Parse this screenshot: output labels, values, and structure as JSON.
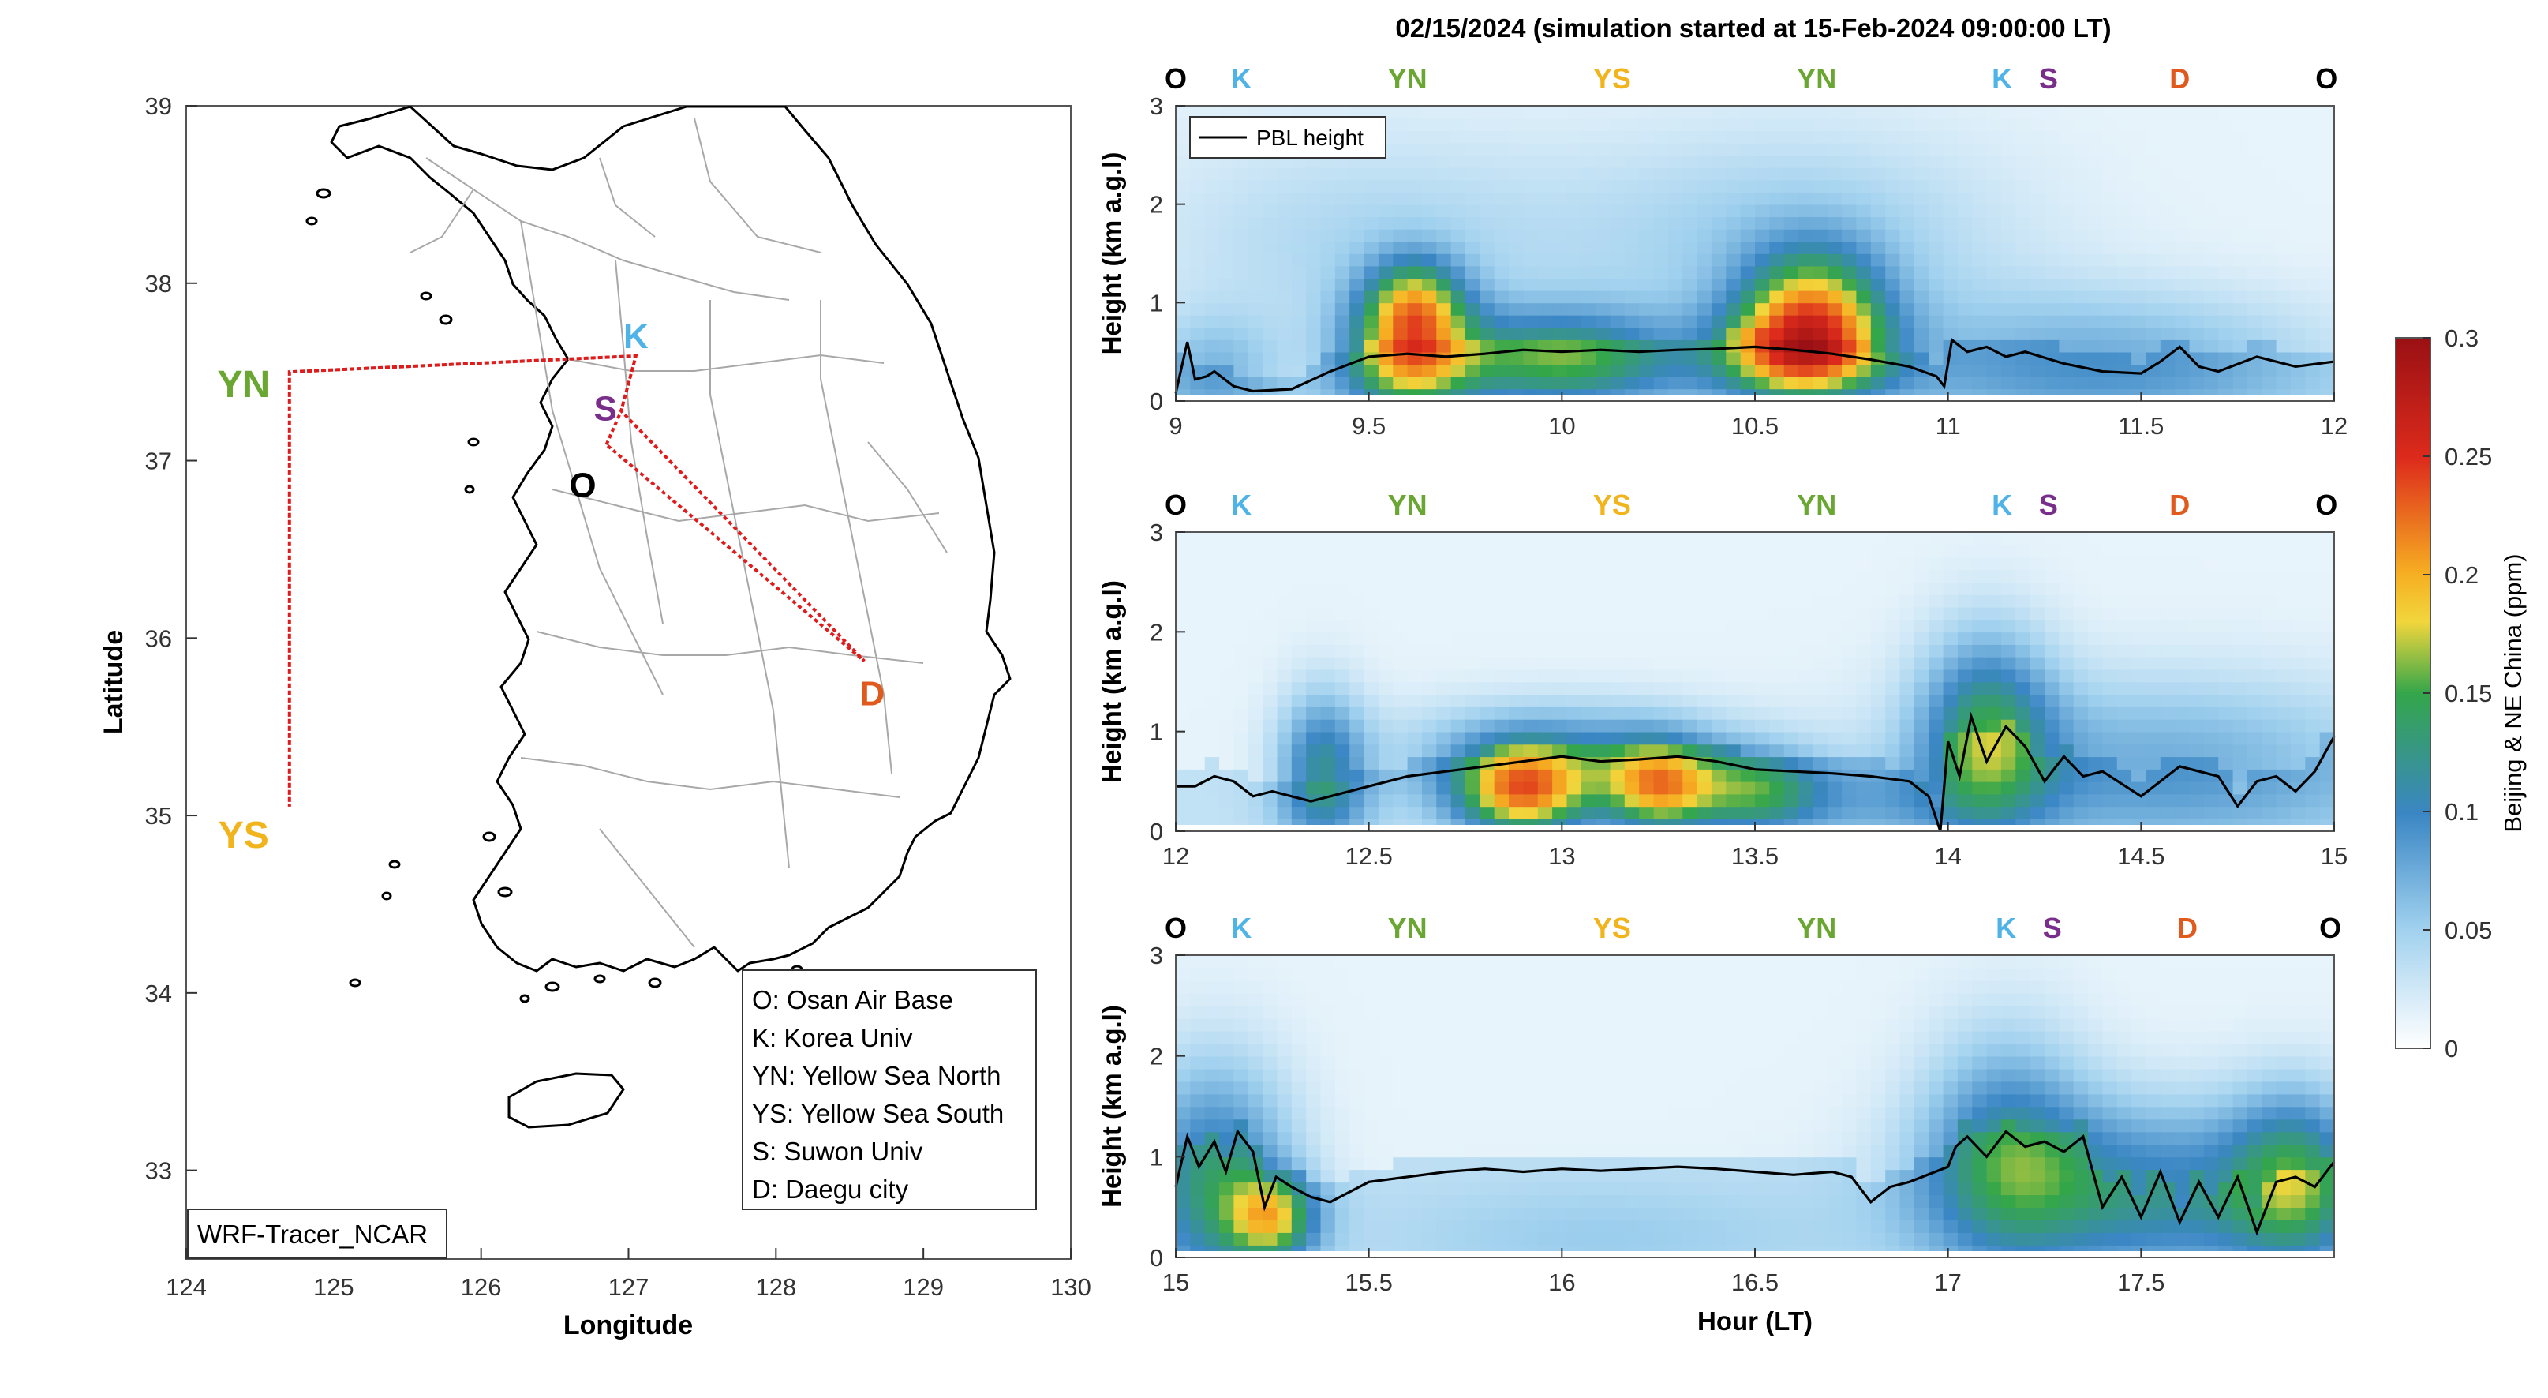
{
  "title": "02/15/2024 (simulation started at 15-Feb-2024 09:00:00 LT)",
  "colors": {
    "O": "#000000",
    "K": "#4fb3e8",
    "YN": "#6aa632",
    "YS": "#f2b41c",
    "S": "#7a2e8c",
    "D": "#e05a1e",
    "track": "#e01b1b",
    "pbl": "#000000"
  },
  "map": {
    "xlabel": "Longitude",
    "ylabel": "Latitude",
    "xticks": [
      "124",
      "125",
      "126",
      "127",
      "128",
      "129",
      "130"
    ],
    "yticks": [
      "33",
      "34",
      "35",
      "36",
      "37",
      "38",
      "39"
    ],
    "xlim": [
      124,
      130
    ],
    "ylim": [
      32.5,
      39
    ],
    "sites": [
      {
        "code": "K",
        "lon": 127.05,
        "lat": 37.59
      },
      {
        "code": "S",
        "lon": 126.95,
        "lat": 37.28
      },
      {
        "code": "O",
        "lon": 126.85,
        "lat": 37.09
      },
      {
        "code": "D",
        "lon": 128.6,
        "lat": 35.87
      },
      {
        "code": "YN",
        "lon": 124.5,
        "lat": 37.5
      },
      {
        "code": "YS",
        "lon": 124.5,
        "lat": 35.05
      }
    ],
    "legend": [
      "O: Osan Air Base",
      "K: Korea Univ",
      "YN: Yellow Sea North",
      "YS: Yellow Sea South",
      "S: Suwon Univ",
      "D: Daegu city"
    ],
    "model_label": "WRF-Tracer_NCAR"
  },
  "colorbar": {
    "label": "Beijing & NE China (ppm)",
    "ticks": [
      "0",
      "0.05",
      "0.1",
      "0.15",
      "0.2",
      "0.25",
      "0.3"
    ],
    "range": [
      0,
      0.3
    ]
  },
  "chart_data": [
    {
      "type": "heatmap",
      "ylabel": "Height (km a.g.l)",
      "xlabel": "",
      "xlim": [
        9,
        12
      ],
      "ylim": [
        0,
        3
      ],
      "xticks": [
        "9",
        "9.5",
        "10",
        "10.5",
        "11",
        "11.5",
        "12"
      ],
      "yticks": [
        "0",
        "1",
        "2",
        "3"
      ],
      "legend": "PBL height",
      "top_labels": [
        {
          "code": "O",
          "x": 9.0
        },
        {
          "code": "K",
          "x": 9.17
        },
        {
          "code": "YN",
          "x": 9.6
        },
        {
          "code": "YS",
          "x": 10.13
        },
        {
          "code": "YN",
          "x": 10.66
        },
        {
          "code": "K",
          "x": 11.14
        },
        {
          "code": "S",
          "x": 11.26
        },
        {
          "code": "D",
          "x": 11.6
        },
        {
          "code": "O",
          "x": 11.98
        }
      ],
      "pbl": {
        "x": [
          9.0,
          9.03,
          9.05,
          9.08,
          9.1,
          9.15,
          9.2,
          9.3,
          9.4,
          9.5,
          9.6,
          9.7,
          9.8,
          9.9,
          10.0,
          10.1,
          10.2,
          10.3,
          10.4,
          10.5,
          10.6,
          10.7,
          10.8,
          10.9,
          10.97,
          10.99,
          11.01,
          11.05,
          11.1,
          11.15,
          11.2,
          11.3,
          11.4,
          11.5,
          11.55,
          11.6,
          11.65,
          11.7,
          11.8,
          11.9,
          12.0
        ],
        "y": [
          0.08,
          0.6,
          0.22,
          0.25,
          0.3,
          0.15,
          0.1,
          0.12,
          0.3,
          0.45,
          0.48,
          0.45,
          0.48,
          0.52,
          0.5,
          0.52,
          0.5,
          0.52,
          0.53,
          0.55,
          0.52,
          0.48,
          0.42,
          0.35,
          0.25,
          0.15,
          0.62,
          0.5,
          0.55,
          0.45,
          0.5,
          0.38,
          0.3,
          0.28,
          0.4,
          0.55,
          0.35,
          0.3,
          0.45,
          0.35,
          0.4
        ]
      },
      "blobs": [
        {
          "x": 9.6,
          "h": 0.45,
          "v": 0.14,
          "sx": 0.12,
          "sy": 0.45
        },
        {
          "x": 9.62,
          "h": 1.0,
          "v": 0.11,
          "sx": 0.09,
          "sy": 0.35
        },
        {
          "x": 10.0,
          "h": 0.45,
          "v": 0.12,
          "sx": 0.22,
          "sy": 0.35
        },
        {
          "x": 10.62,
          "h": 0.5,
          "v": 0.17,
          "sx": 0.15,
          "sy": 0.35
        },
        {
          "x": 10.65,
          "h": 1.0,
          "v": 0.12,
          "sx": 0.13,
          "sy": 0.45
        },
        {
          "x": 9.5,
          "h": 1.6,
          "v": 0.03,
          "sx": 0.4,
          "sy": 0.8
        },
        {
          "x": 10.6,
          "h": 1.6,
          "v": 0.04,
          "sx": 0.4,
          "sy": 0.8
        },
        {
          "x": 11.4,
          "h": 0.4,
          "v": 0.06,
          "sx": 0.4,
          "sy": 0.5
        },
        {
          "x": 9.1,
          "h": 0.3,
          "v": 0.05,
          "sx": 0.12,
          "sy": 0.4
        }
      ]
    },
    {
      "type": "heatmap",
      "ylabel": "Height (km a.g.l)",
      "xlabel": "",
      "xlim": [
        12,
        15
      ],
      "ylim": [
        0,
        3
      ],
      "xticks": [
        "12",
        "12.5",
        "13",
        "13.5",
        "14",
        "14.5",
        "15"
      ],
      "yticks": [
        "0",
        "1",
        "2",
        "3"
      ],
      "top_labels": [
        {
          "code": "O",
          "x": 12.0
        },
        {
          "code": "K",
          "x": 12.17
        },
        {
          "code": "YN",
          "x": 12.6
        },
        {
          "code": "YS",
          "x": 13.13
        },
        {
          "code": "YN",
          "x": 13.66
        },
        {
          "code": "K",
          "x": 14.14
        },
        {
          "code": "S",
          "x": 14.26
        },
        {
          "code": "D",
          "x": 14.6
        },
        {
          "code": "O",
          "x": 14.98
        }
      ],
      "pbl": {
        "x": [
          12.0,
          12.05,
          12.1,
          12.15,
          12.2,
          12.25,
          12.3,
          12.35,
          12.4,
          12.5,
          12.6,
          12.7,
          12.8,
          12.9,
          13.0,
          13.1,
          13.2,
          13.3,
          13.4,
          13.5,
          13.6,
          13.7,
          13.8,
          13.9,
          13.95,
          13.98,
          14.0,
          14.03,
          14.06,
          14.1,
          14.15,
          14.2,
          14.25,
          14.3,
          14.35,
          14.4,
          14.5,
          14.6,
          14.7,
          14.75,
          14.8,
          14.85,
          14.9,
          14.95,
          15.0
        ],
        "y": [
          0.45,
          0.45,
          0.55,
          0.5,
          0.35,
          0.4,
          0.35,
          0.3,
          0.35,
          0.45,
          0.55,
          0.6,
          0.65,
          0.7,
          0.75,
          0.7,
          0.72,
          0.75,
          0.7,
          0.62,
          0.6,
          0.58,
          0.55,
          0.5,
          0.35,
          0.0,
          0.9,
          0.55,
          1.15,
          0.7,
          1.05,
          0.85,
          0.5,
          0.75,
          0.55,
          0.6,
          0.35,
          0.65,
          0.55,
          0.25,
          0.5,
          0.55,
          0.4,
          0.6,
          0.95
        ]
      },
      "blobs": [
        {
          "x": 12.38,
          "h": 0.6,
          "v": 0.1,
          "sx": 0.08,
          "sy": 0.55
        },
        {
          "x": 12.9,
          "h": 0.4,
          "v": 0.17,
          "sx": 0.12,
          "sy": 0.32
        },
        {
          "x": 13.25,
          "h": 0.45,
          "v": 0.15,
          "sx": 0.1,
          "sy": 0.32
        },
        {
          "x": 13.5,
          "h": 0.4,
          "v": 0.1,
          "sx": 0.12,
          "sy": 0.3
        },
        {
          "x": 13.0,
          "h": 0.8,
          "v": 0.07,
          "sx": 0.3,
          "sy": 0.35
        },
        {
          "x": 14.1,
          "h": 1.0,
          "v": 0.11,
          "sx": 0.12,
          "sy": 0.7
        },
        {
          "x": 14.55,
          "h": 0.7,
          "v": 0.06,
          "sx": 0.45,
          "sy": 0.6
        },
        {
          "x": 13.8,
          "h": 0.3,
          "v": 0.03,
          "sx": 0.2,
          "sy": 0.3
        }
      ]
    },
    {
      "type": "heatmap",
      "ylabel": "Height (km a.g.l)",
      "xlabel": "Hour (LT)",
      "xlim": [
        15,
        18
      ],
      "ylim": [
        0,
        3
      ],
      "xticks": [
        "15",
        "15.5",
        "16",
        "16.5",
        "17",
        "17.5"
      ],
      "yticks": [
        "0",
        "1",
        "2",
        "3"
      ],
      "top_labels": [
        {
          "code": "O",
          "x": 15.0
        },
        {
          "code": "K",
          "x": 15.17
        },
        {
          "code": "YN",
          "x": 15.6
        },
        {
          "code": "YS",
          "x": 16.13
        },
        {
          "code": "YN",
          "x": 16.66
        },
        {
          "code": "K",
          "x": 17.15
        },
        {
          "code": "S",
          "x": 17.27
        },
        {
          "code": "D",
          "x": 17.62
        },
        {
          "code": "O",
          "x": 17.99
        }
      ],
      "pbl": {
        "x": [
          15.0,
          15.03,
          15.06,
          15.1,
          15.13,
          15.16,
          15.2,
          15.23,
          15.26,
          15.3,
          15.35,
          15.4,
          15.5,
          15.6,
          15.7,
          15.8,
          15.9,
          16.0,
          16.1,
          16.2,
          16.3,
          16.4,
          16.5,
          16.6,
          16.7,
          16.75,
          16.8,
          16.85,
          16.9,
          17.0,
          17.02,
          17.05,
          17.1,
          17.15,
          17.2,
          17.25,
          17.3,
          17.35,
          17.4,
          17.45,
          17.5,
          17.55,
          17.6,
          17.65,
          17.7,
          17.75,
          17.8,
          17.85,
          17.9,
          17.95,
          18.0
        ],
        "y": [
          0.7,
          1.2,
          0.9,
          1.15,
          0.85,
          1.25,
          1.05,
          0.5,
          0.8,
          0.7,
          0.6,
          0.55,
          0.75,
          0.8,
          0.85,
          0.88,
          0.85,
          0.88,
          0.86,
          0.88,
          0.9,
          0.88,
          0.85,
          0.82,
          0.85,
          0.8,
          0.55,
          0.7,
          0.75,
          0.9,
          1.1,
          1.2,
          1.0,
          1.25,
          1.1,
          1.15,
          1.05,
          1.2,
          0.5,
          0.8,
          0.4,
          0.85,
          0.35,
          0.75,
          0.4,
          0.8,
          0.25,
          0.75,
          0.8,
          0.7,
          0.95
        ]
      },
      "blobs": [
        {
          "x": 15.1,
          "h": 0.8,
          "v": 0.1,
          "sx": 0.14,
          "sy": 0.8
        },
        {
          "x": 15.25,
          "h": 0.4,
          "v": 0.12,
          "sx": 0.08,
          "sy": 0.3
        },
        {
          "x": 17.15,
          "h": 1.1,
          "v": 0.08,
          "sx": 0.15,
          "sy": 0.8
        },
        {
          "x": 17.5,
          "h": 0.7,
          "v": 0.09,
          "sx": 0.35,
          "sy": 0.6
        },
        {
          "x": 17.9,
          "h": 0.8,
          "v": 0.1,
          "sx": 0.12,
          "sy": 0.6
        },
        {
          "x": 16.1,
          "h": 0.2,
          "v": 0.02,
          "sx": 0.4,
          "sy": 0.4
        }
      ]
    }
  ]
}
